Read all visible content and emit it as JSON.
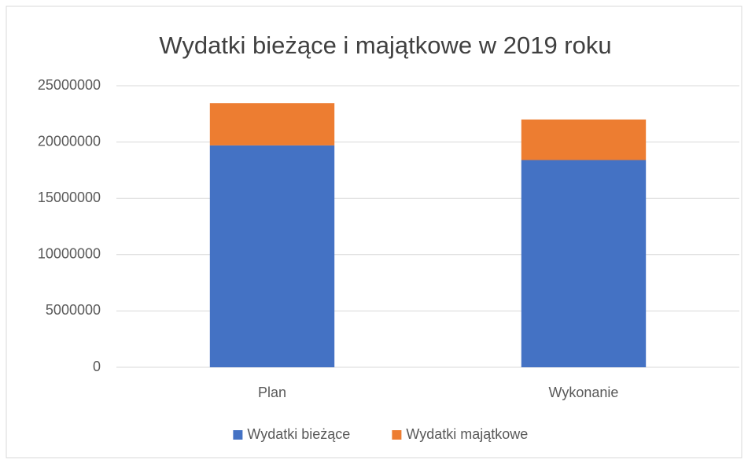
{
  "chart_data": {
    "type": "stacked_bar",
    "title": "Wydatki bieżące i majątkowe w 2019 roku",
    "categories": [
      "Plan",
      "Wykonanie"
    ],
    "series": [
      {
        "name": "Wydatki bieżące",
        "color": "#4472c4",
        "values": [
          19700000,
          18400000
        ]
      },
      {
        "name": "Wydatki majątkowe",
        "color": "#ed7d31",
        "values": [
          3750000,
          3600000
        ]
      }
    ],
    "ylim": [
      0,
      25000000
    ],
    "yticks": [
      0,
      5000000,
      10000000,
      15000000,
      20000000,
      25000000
    ],
    "grid": true,
    "legend": "bottom"
  }
}
